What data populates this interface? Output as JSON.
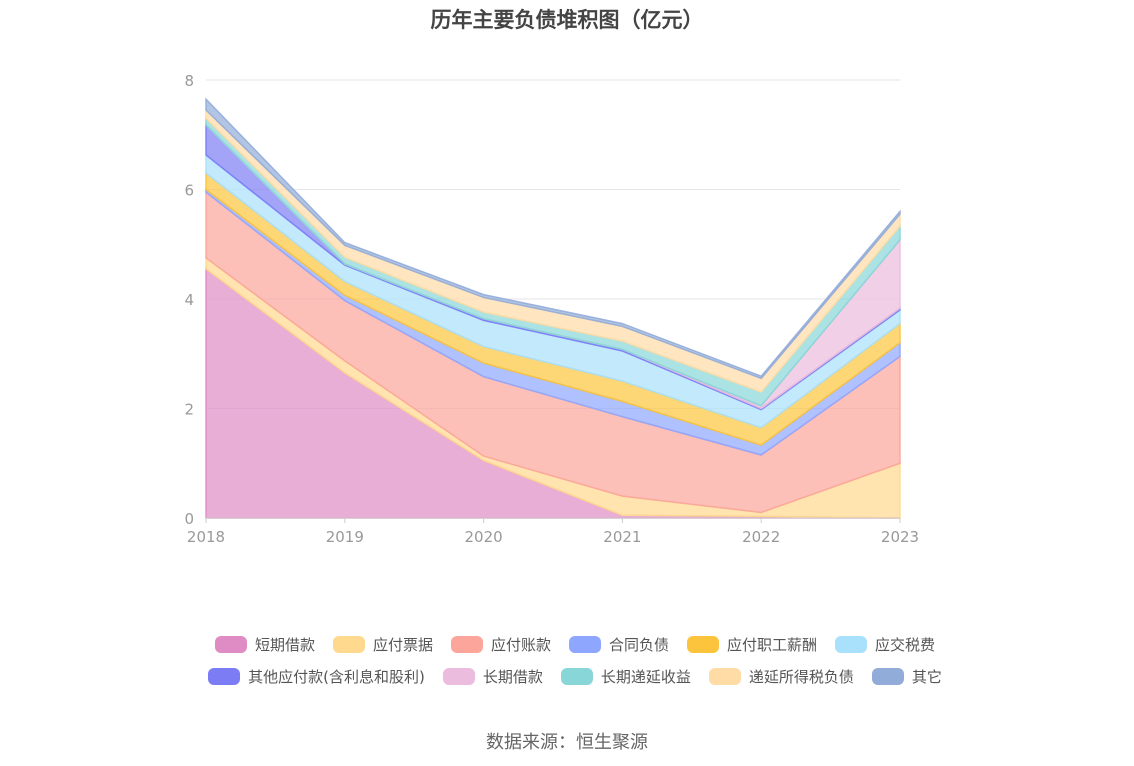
{
  "chart_data": {
    "type": "area",
    "title": "历年主要负债堆积图（亿元）",
    "x": [
      "2018",
      "2019",
      "2020",
      "2021",
      "2022",
      "2023"
    ],
    "ylim": [
      0,
      8
    ],
    "yticks": [
      "0",
      "2",
      "4",
      "6",
      "8"
    ],
    "grid": true,
    "stacked": true,
    "legend_position": "bottom",
    "series": [
      {
        "name": "短期借款",
        "color": "#e08cc4",
        "values": [
          4.55,
          2.65,
          1.05,
          0.05,
          0.03,
          0.0
        ]
      },
      {
        "name": "应付票据",
        "color": "#ffd98e",
        "values": [
          0.2,
          0.22,
          0.08,
          0.35,
          0.07,
          1.0
        ]
      },
      {
        "name": "应付账款",
        "color": "#fba59b",
        "values": [
          1.2,
          1.1,
          1.45,
          1.45,
          1.05,
          1.95
        ]
      },
      {
        "name": "合同负债",
        "color": "#8fa6ff",
        "values": [
          0.05,
          0.1,
          0.25,
          0.28,
          0.18,
          0.25
        ]
      },
      {
        "name": "应付职工薪酬",
        "color": "#fcc43c",
        "values": [
          0.3,
          0.25,
          0.3,
          0.37,
          0.32,
          0.35
        ]
      },
      {
        "name": "应交税费",
        "color": "#a9e0fb",
        "values": [
          0.33,
          0.3,
          0.48,
          0.55,
          0.33,
          0.25
        ]
      },
      {
        "name": "其他应付款(含利息和股利)",
        "color": "#7c7cf5",
        "values": [
          0.55,
          0.02,
          0.03,
          0.03,
          0.02,
          0.03
        ]
      },
      {
        "name": "长期借款",
        "color": "#ebbcdd",
        "values": [
          0.0,
          0.0,
          0.0,
          0.0,
          0.05,
          1.25
        ]
      },
      {
        "name": "长期递延收益",
        "color": "#88d6d8",
        "values": [
          0.12,
          0.12,
          0.12,
          0.15,
          0.25,
          0.25
        ]
      },
      {
        "name": "递延所得税负债",
        "color": "#ffdca5",
        "values": [
          0.15,
          0.22,
          0.27,
          0.27,
          0.25,
          0.22
        ]
      },
      {
        "name": "其它",
        "color": "#92acd9",
        "values": [
          0.2,
          0.05,
          0.05,
          0.05,
          0.04,
          0.05
        ]
      }
    ],
    "source": "数据来源：恒生聚源"
  }
}
